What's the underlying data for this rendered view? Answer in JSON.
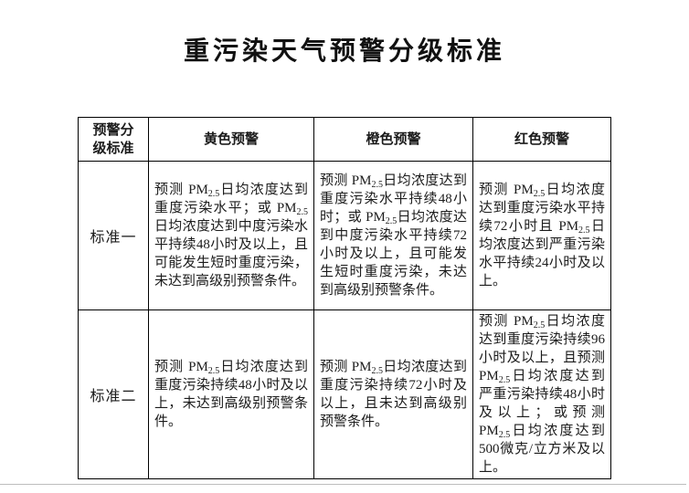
{
  "page": {
    "title": "重污染天气预警分级标准"
  },
  "table": {
    "headers": [
      "预警分\n级标准",
      "黄色预警",
      "橙色预警",
      "红色预警"
    ],
    "rows": [
      {
        "label": "标准一",
        "cells": [
          "预测 PM2.5日均浓度达到重度污染水平；或 PM2.5日均浓度达到中度污染水平持续48小时及以上，且可能发生短时重度污染，未达到高级别预警条件。",
          "预测 PM2.5日均浓度达到重度污染水平持续48小时；或 PM2.5日均浓度达到中度污染水平持续72小时及以上，且可能发生短时重度污染，未达到高级别预警条件。",
          "预测 PM2.5日均浓度达到重度污染水平持续72小时且 PM2.5日均浓度达到严重污染水平持续24小时及以上。"
        ]
      },
      {
        "label": "标准二",
        "cells": [
          "预测 PM2.5日均浓度达到重度污染持续48小时及以上，未达到高级别预警条件。",
          "预测 PM2.5日均浓度达到重度污染持续72小时及以上，且未达到高级别预警条件。",
          "预测 PM2.5日均浓度达到重度污染持续96小时及以上，且预测 PM2.5日均浓度达到严重污染持续48小时及以上；或预测PM2.5日均浓度达到500微克/立方米及以上。"
        ]
      }
    ]
  },
  "colors": {
    "text": "#1b1b1b",
    "table_border": "#000000",
    "page_divider": "#bdbdbd"
  }
}
